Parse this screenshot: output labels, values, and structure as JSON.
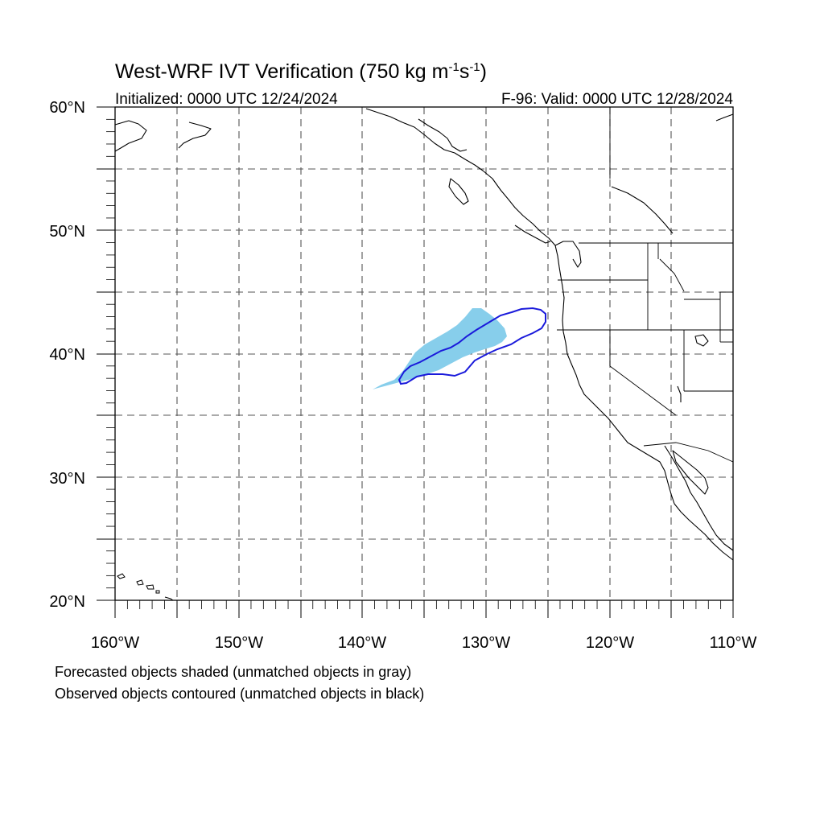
{
  "header": {
    "title": "West-WRF IVT Verification (750 kg m",
    "title_sup1": "-1",
    "title_mid": "s",
    "title_sup2": "-1",
    "title_end": ")",
    "initialized": "Initialized: 0000 UTC 12/24/2024",
    "valid": "F-96: Valid: 0000 UTC 12/28/2024"
  },
  "map": {
    "lon_range": [
      -160,
      -110
    ],
    "lat_range": [
      20,
      60
    ],
    "lon_labels": [
      "160°W",
      "150°W",
      "140°W",
      "130°W",
      "120°W",
      "110°W"
    ],
    "lat_labels": [
      "60°N",
      "50°N",
      "40°N",
      "30°N",
      "20°N"
    ],
    "gridlines": "dashed",
    "forecast_fill_color": "#87CEEB",
    "observed_contour_color": "#1a1adb",
    "coastline_color": "#000000"
  },
  "footer": {
    "line1": "Forecasted objects shaded (unmatched objects in gray)",
    "line2": "Observed objects contoured (unmatched objects in black)"
  }
}
